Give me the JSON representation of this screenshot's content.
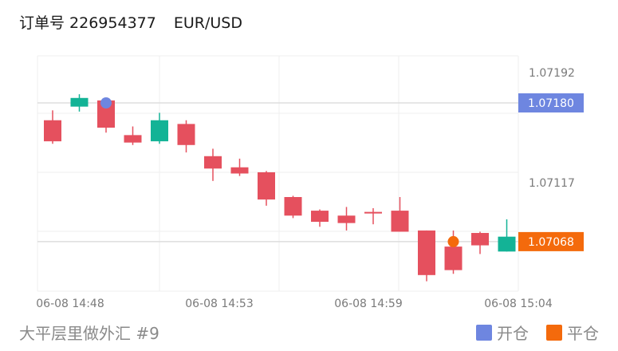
{
  "header": {
    "order_label": "订单号 226954377",
    "pair": "EUR/USD"
  },
  "footer": {
    "caption": "大平层里做外汇 #9"
  },
  "legend": [
    {
      "label": "开仓",
      "color": "#6e86e0"
    },
    {
      "label": "平仓",
      "color": "#f46a0c"
    }
  ],
  "colors": {
    "up": "#13b396",
    "down": "#e5505e",
    "open_marker": "#6e86e0",
    "close_marker": "#f46a0c"
  },
  "chart_data": {
    "type": "candlestick",
    "x_tick_labels": [
      "06-08 14:48",
      "06-08 14:53",
      "06-08 14:59",
      "06-08 15:04"
    ],
    "y_tick_labels": [
      "1.07192",
      "1.07117"
    ],
    "ylim": [
      1.07028,
      1.07218
    ],
    "grid": true,
    "price_tags": [
      {
        "label": "1.07180",
        "value": 1.0718,
        "kind": "open"
      },
      {
        "label": "1.07068",
        "value": 1.07068,
        "kind": "close"
      }
    ],
    "candles": [
      {
        "open": 1.07166,
        "high": 1.07174,
        "low": 1.07147,
        "close": 1.07149
      },
      {
        "open": 1.07177,
        "high": 1.07187,
        "low": 1.07173,
        "close": 1.07184
      },
      {
        "open": 1.07182,
        "high": 1.07183,
        "low": 1.07156,
        "close": 1.0716
      },
      {
        "open": 1.07154,
        "high": 1.07161,
        "low": 1.07146,
        "close": 1.07148
      },
      {
        "open": 1.07149,
        "high": 1.07172,
        "low": 1.07147,
        "close": 1.07166
      },
      {
        "open": 1.07163,
        "high": 1.07166,
        "low": 1.0714,
        "close": 1.07146
      },
      {
        "open": 1.07137,
        "high": 1.07143,
        "low": 1.07117,
        "close": 1.07127
      },
      {
        "open": 1.07128,
        "high": 1.07135,
        "low": 1.07121,
        "close": 1.07123
      },
      {
        "open": 1.07124,
        "high": 1.07125,
        "low": 1.07097,
        "close": 1.07102
      },
      {
        "open": 1.07104,
        "high": 1.07105,
        "low": 1.07087,
        "close": 1.07089
      },
      {
        "open": 1.07093,
        "high": 1.07094,
        "low": 1.0708,
        "close": 1.07084
      },
      {
        "open": 1.07089,
        "high": 1.07096,
        "low": 1.07077,
        "close": 1.07083
      },
      {
        "open": 1.07092,
        "high": 1.07095,
        "low": 1.07082,
        "close": 1.07091
      },
      {
        "open": 1.07093,
        "high": 1.07104,
        "low": 1.07076,
        "close": 1.07076
      },
      {
        "open": 1.07077,
        "high": 1.07077,
        "low": 1.07036,
        "close": 1.07041
      },
      {
        "open": 1.07064,
        "high": 1.07077,
        "low": 1.07042,
        "close": 1.07045
      },
      {
        "open": 1.07075,
        "high": 1.07076,
        "low": 1.07058,
        "close": 1.07065
      },
      {
        "open": 1.0706,
        "high": 1.07086,
        "low": 1.0706,
        "close": 1.07072
      }
    ],
    "open_marker": {
      "candle_index": 2,
      "price": 1.0718
    },
    "close_marker": {
      "candle_index": 15,
      "price": 1.07068
    }
  }
}
